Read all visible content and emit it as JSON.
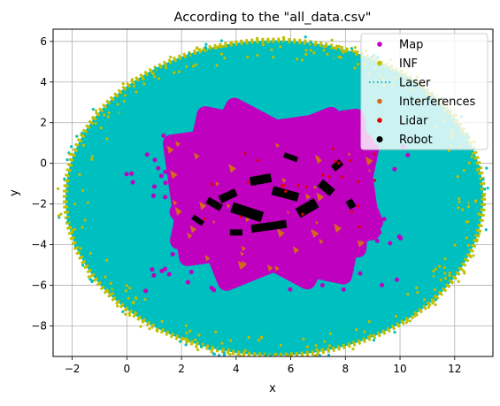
{
  "chart_data": {
    "type": "scatter",
    "title": "According to the \"all_data.csv\"",
    "xlabel": "x",
    "ylabel": "y",
    "xlim": [
      -2.7,
      13.4
    ],
    "ylim": [
      -9.5,
      6.6
    ],
    "xticks": [
      -2,
      0,
      2,
      4,
      6,
      8,
      10,
      12
    ],
    "yticks": [
      -8,
      -6,
      -4,
      -2,
      0,
      2,
      4,
      6
    ],
    "grid": true,
    "legend_position": "top-right",
    "series": [
      {
        "name": "Map",
        "marker": "dot",
        "color": "#bf00bf",
        "center": [
          5.4,
          -1.4
        ],
        "approx_extent": [
          [
            -0.5,
            10.5
          ],
          [
            -6.3,
            1.4
          ]
        ]
      },
      {
        "name": "INF",
        "marker": "dot",
        "color": "#bfbf00",
        "center": [
          5.4,
          -1.7
        ],
        "approx_radius": [
          7.6,
          7.8
        ]
      },
      {
        "name": "Laser",
        "marker": "dotted-line",
        "color": "#00bfbf",
        "center": [
          5.4,
          -1.7
        ],
        "approx_radius": [
          7.5,
          7.6
        ]
      },
      {
        "name": "Interferences",
        "marker": "dot",
        "color": "#d2691e",
        "center": [
          5.2,
          -1.8
        ],
        "approx_extent": [
          [
            0.8,
            9.5
          ],
          [
            -6.0,
            3.0
          ]
        ]
      },
      {
        "name": "Lidar",
        "marker": "dot",
        "color": "#e00000",
        "center": [
          6.0,
          -1.2
        ],
        "approx_extent": [
          [
            1.0,
            9.5
          ],
          [
            -4.5,
            0.8
          ]
        ]
      },
      {
        "name": "Robot",
        "marker": "dot",
        "color": "#000000",
        "center": [
          5.5,
          -2.0
        ],
        "approx_extent": [
          [
            2.2,
            8.5
          ],
          [
            -3.9,
            1.0
          ]
        ]
      }
    ]
  }
}
